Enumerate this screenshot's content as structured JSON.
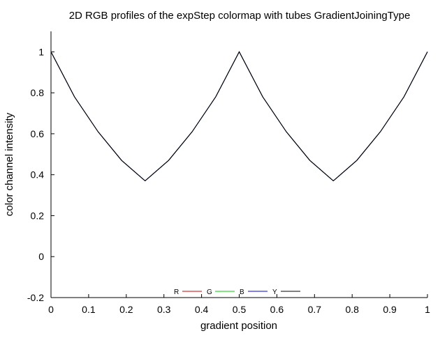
{
  "chart_data": {
    "type": "line",
    "title": "2D RGB profiles of the expStep colormap with tubes GradientJoiningType",
    "xlabel": "gradient position",
    "ylabel": "color channel intensity",
    "xlim": [
      0,
      1
    ],
    "ylim": [
      -0.2,
      1.1
    ],
    "x_ticks": [
      0,
      0.1,
      0.2,
      0.3,
      0.4,
      0.5,
      0.6,
      0.7,
      0.8,
      0.9,
      1
    ],
    "x_tick_labels": [
      "0",
      "0.1",
      "0.2",
      "0.3",
      "0.4",
      "0.5",
      "0.6",
      "0.7",
      "0.8",
      "0.9",
      "1"
    ],
    "y_ticks": [
      -0.2,
      0,
      0.2,
      0.4,
      0.6,
      0.8,
      1
    ],
    "y_tick_labels": [
      "-0.2",
      "0",
      "0.2",
      "0.4",
      "0.6",
      "0.8",
      "1"
    ],
    "grid": false,
    "legend_position": "bottom-center",
    "series": [
      {
        "name": "R",
        "color": "#cc0000",
        "x": [
          0,
          0.0625,
          0.125,
          0.1875,
          0.25,
          0.3125,
          0.375,
          0.4375,
          0.5,
          0.5625,
          0.625,
          0.6875,
          0.75,
          0.8125,
          0.875,
          0.9375,
          1
        ],
        "y": [
          1,
          0.78,
          0.61,
          0.47,
          0.37,
          0.47,
          0.61,
          0.78,
          1,
          0.78,
          0.61,
          0.47,
          0.37,
          0.47,
          0.61,
          0.78,
          1
        ]
      },
      {
        "name": "G",
        "color": "#00cc00",
        "x": [
          0,
          0.0625,
          0.125,
          0.1875,
          0.25,
          0.3125,
          0.375,
          0.4375,
          0.5,
          0.5625,
          0.625,
          0.6875,
          0.75,
          0.8125,
          0.875,
          0.9375,
          1
        ],
        "y": [
          1,
          0.78,
          0.61,
          0.47,
          0.37,
          0.47,
          0.61,
          0.78,
          1,
          0.78,
          0.61,
          0.47,
          0.37,
          0.47,
          0.61,
          0.78,
          1
        ]
      },
      {
        "name": "B",
        "color": "#0000cc",
        "x": [
          0,
          0.0625,
          0.125,
          0.1875,
          0.25,
          0.3125,
          0.375,
          0.4375,
          0.5,
          0.5625,
          0.625,
          0.6875,
          0.75,
          0.8125,
          0.875,
          0.9375,
          1
        ],
        "y": [
          1,
          0.78,
          0.61,
          0.47,
          0.37,
          0.47,
          0.61,
          0.78,
          1,
          0.78,
          0.61,
          0.47,
          0.37,
          0.47,
          0.61,
          0.78,
          1
        ]
      },
      {
        "name": "Y",
        "color": "#000000",
        "x": [
          0,
          0.0625,
          0.125,
          0.1875,
          0.25,
          0.3125,
          0.375,
          0.4375,
          0.5,
          0.5625,
          0.625,
          0.6875,
          0.75,
          0.8125,
          0.875,
          0.9375,
          1
        ],
        "y": [
          1,
          0.78,
          0.61,
          0.47,
          0.37,
          0.47,
          0.61,
          0.78,
          1,
          0.78,
          0.61,
          0.47,
          0.37,
          0.47,
          0.61,
          0.78,
          1
        ]
      }
    ]
  }
}
